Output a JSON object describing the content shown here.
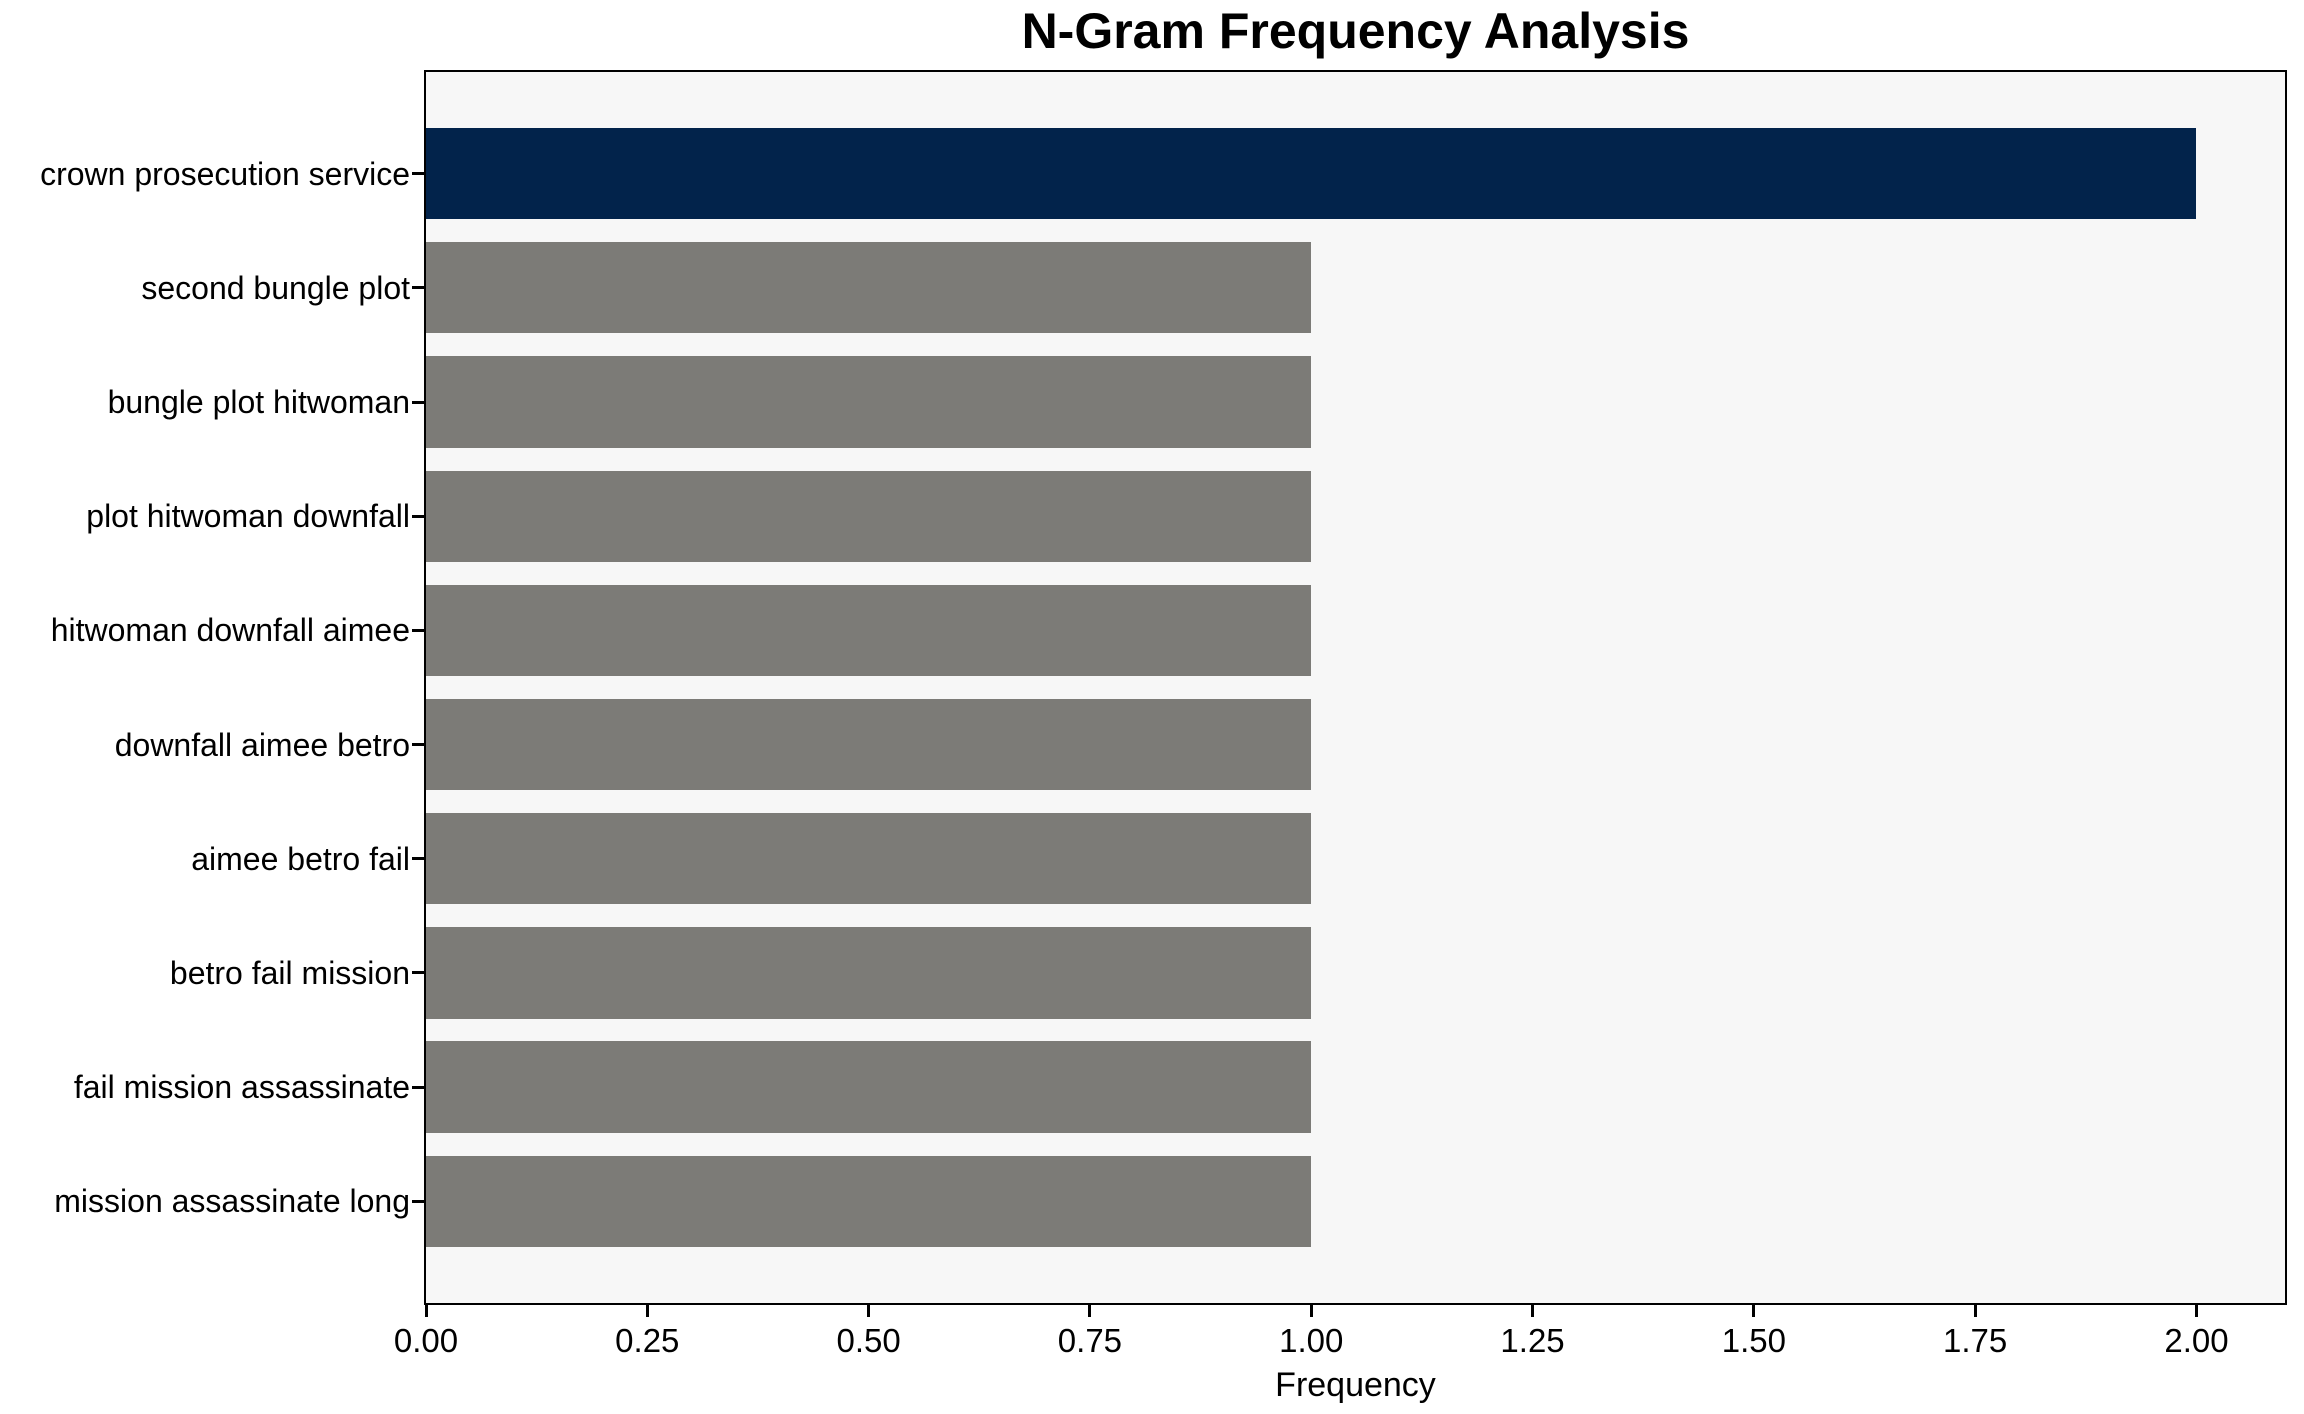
{
  "figure": {
    "background": "#ffffff",
    "frame_color": "#000000",
    "plot_background": "#f7f7f7",
    "text_color": "#000000"
  },
  "chart_data": {
    "type": "bar",
    "orientation": "horizontal",
    "title": "N-Gram Frequency Analysis",
    "xlabel": "Frequency",
    "ylabel": "",
    "categories": [
      "crown prosecution service",
      "second bungle plot",
      "bungle plot hitwoman",
      "plot hitwoman downfall",
      "hitwoman downfall aimee",
      "downfall aimee betro",
      "aimee betro fail",
      "betro fail mission",
      "fail mission assassinate",
      "mission assassinate long"
    ],
    "values": [
      2,
      1,
      1,
      1,
      1,
      1,
      1,
      1,
      1,
      1
    ],
    "bar_colors": [
      "#02234b",
      "#7c7b77",
      "#7c7b77",
      "#7c7b77",
      "#7c7b77",
      "#7c7b77",
      "#7c7b77",
      "#7c7b77",
      "#7c7b77",
      "#7c7b77"
    ],
    "highlight_color": "#02234b",
    "default_color": "#7c7b77",
    "xlim": [
      0,
      2.1
    ],
    "ylim": [
      -0.89,
      9.89
    ],
    "bar_height_units": 0.8,
    "xticks": [
      0.0,
      0.25,
      0.5,
      0.75,
      1.0,
      1.25,
      1.5,
      1.75,
      2.0
    ],
    "xtick_labels": [
      "0.00",
      "0.25",
      "0.50",
      "0.75",
      "1.00",
      "1.25",
      "1.50",
      "1.75",
      "2.00"
    ],
    "grid": false,
    "legend": null
  }
}
